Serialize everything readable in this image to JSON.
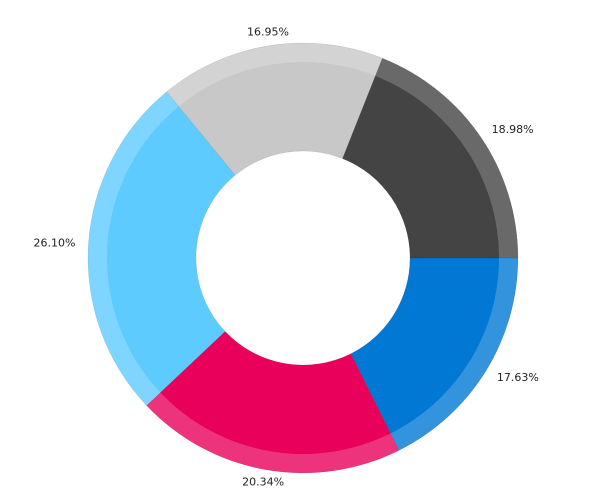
{
  "chart_data": {
    "type": "donut",
    "values": [
      17.63,
      20.34,
      26.1,
      16.95,
      18.98
    ],
    "value_labels": [
      "17.63%",
      "20.34%",
      "26.10%",
      "16.95%",
      "18.98%"
    ],
    "colors": [
      "#0078d4",
      "#e8005a",
      "#5ecbff",
      "#c8c8c8",
      "#444444"
    ]
  }
}
